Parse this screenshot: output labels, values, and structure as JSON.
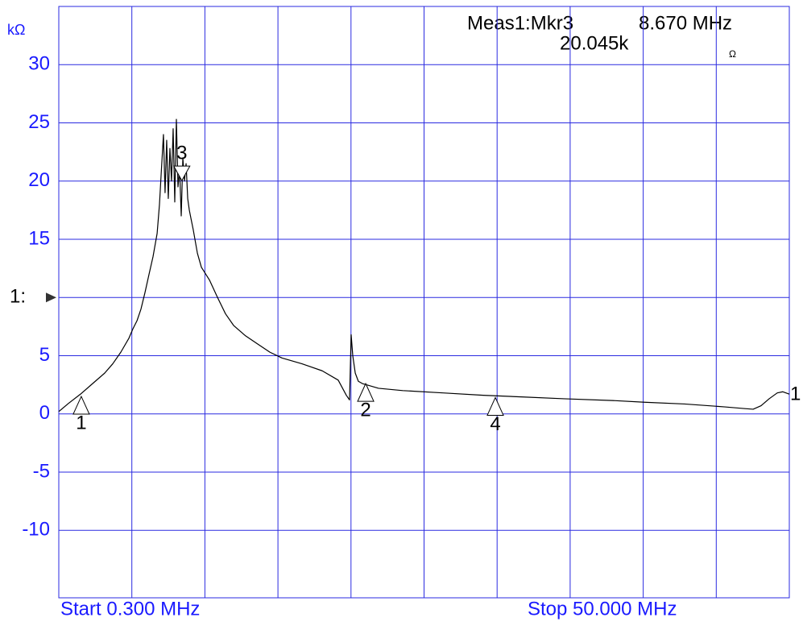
{
  "chart_data": {
    "type": "line",
    "unit_label": "kΩ",
    "readout": {
      "name": "Meas1:Mkr3",
      "frequency": "8.670 MHz",
      "value": "20.045k",
      "unit": "Ω"
    },
    "start_label": "Start 0.300 MHz",
    "stop_label": "Stop 50.000 MHz",
    "channel_label": "1",
    "xlim": [
      0.3,
      50
    ],
    "ylim": [
      -15.8,
      35
    ],
    "yticks": [
      30,
      25,
      20,
      15,
      {
        "value": 10,
        "label": "1:"
      },
      5,
      0,
      -5,
      -10
    ],
    "grid": true,
    "grid_color": "#2a2ae0",
    "color": "#000000",
    "x": [
      0.3,
      0.96,
      1.78,
      2.6,
      3.42,
      3.97,
      4.52,
      5.07,
      5.34,
      5.62,
      5.89,
      6.16,
      6.44,
      6.71,
      6.99,
      7.15,
      7.26,
      7.42,
      7.53,
      7.64,
      7.75,
      7.86,
      7.97,
      8.08,
      8.19,
      8.3,
      8.41,
      8.52,
      8.63,
      8.74,
      8.85,
      8.96,
      9.07,
      9.18,
      9.29,
      9.45,
      9.73,
      10.0,
      10.55,
      11.1,
      11.64,
      12.19,
      13.01,
      13.83,
      14.66,
      15.48,
      16.85,
      18.22,
      19.31,
      19.86,
      20.08,
      20.19,
      20.3,
      20.47,
      20.68,
      20.96,
      21.23,
      22.05,
      23.7,
      26.44,
      29.18,
      31.92,
      34.66,
      37.95,
      40.14,
      42.88,
      45.62,
      46.99,
      47.54,
      48.08,
      48.63,
      49.18,
      49.56,
      50.0
    ],
    "values": [
      0.2,
      0.9,
      1.7,
      2.6,
      3.5,
      4.3,
      5.3,
      6.5,
      7.3,
      8.0,
      9.0,
      10.4,
      12.0,
      13.5,
      15.5,
      18.0,
      20.5,
      24.0,
      19.0,
      23.5,
      18.5,
      22.8,
      20.0,
      24.5,
      18.2,
      25.3,
      19.5,
      21.0,
      17.0,
      22.0,
      20.0,
      21.5,
      18.5,
      17.5,
      16.8,
      15.8,
      13.8,
      12.6,
      11.5,
      10.0,
      8.6,
      7.6,
      6.7,
      6.0,
      5.3,
      4.8,
      4.3,
      3.7,
      2.9,
      1.6,
      1.2,
      6.8,
      5.0,
      3.5,
      2.8,
      2.6,
      2.5,
      2.2,
      2.0,
      1.8,
      1.6,
      1.45,
      1.3,
      1.15,
      1.0,
      0.85,
      0.6,
      0.45,
      0.4,
      0.7,
      1.3,
      1.8,
      1.9,
      1.7
    ],
    "markers": [
      {
        "label": "1",
        "x": 1.83,
        "value": 1.5,
        "direction": "up"
      },
      {
        "label": "2",
        "x": 21.18,
        "value": 2.6,
        "direction": "up"
      },
      {
        "label": "3",
        "x": 8.67,
        "value": 20.045,
        "direction": "down"
      },
      {
        "label": "4",
        "x": 30.0,
        "value": 1.4,
        "direction": "up"
      }
    ]
  }
}
